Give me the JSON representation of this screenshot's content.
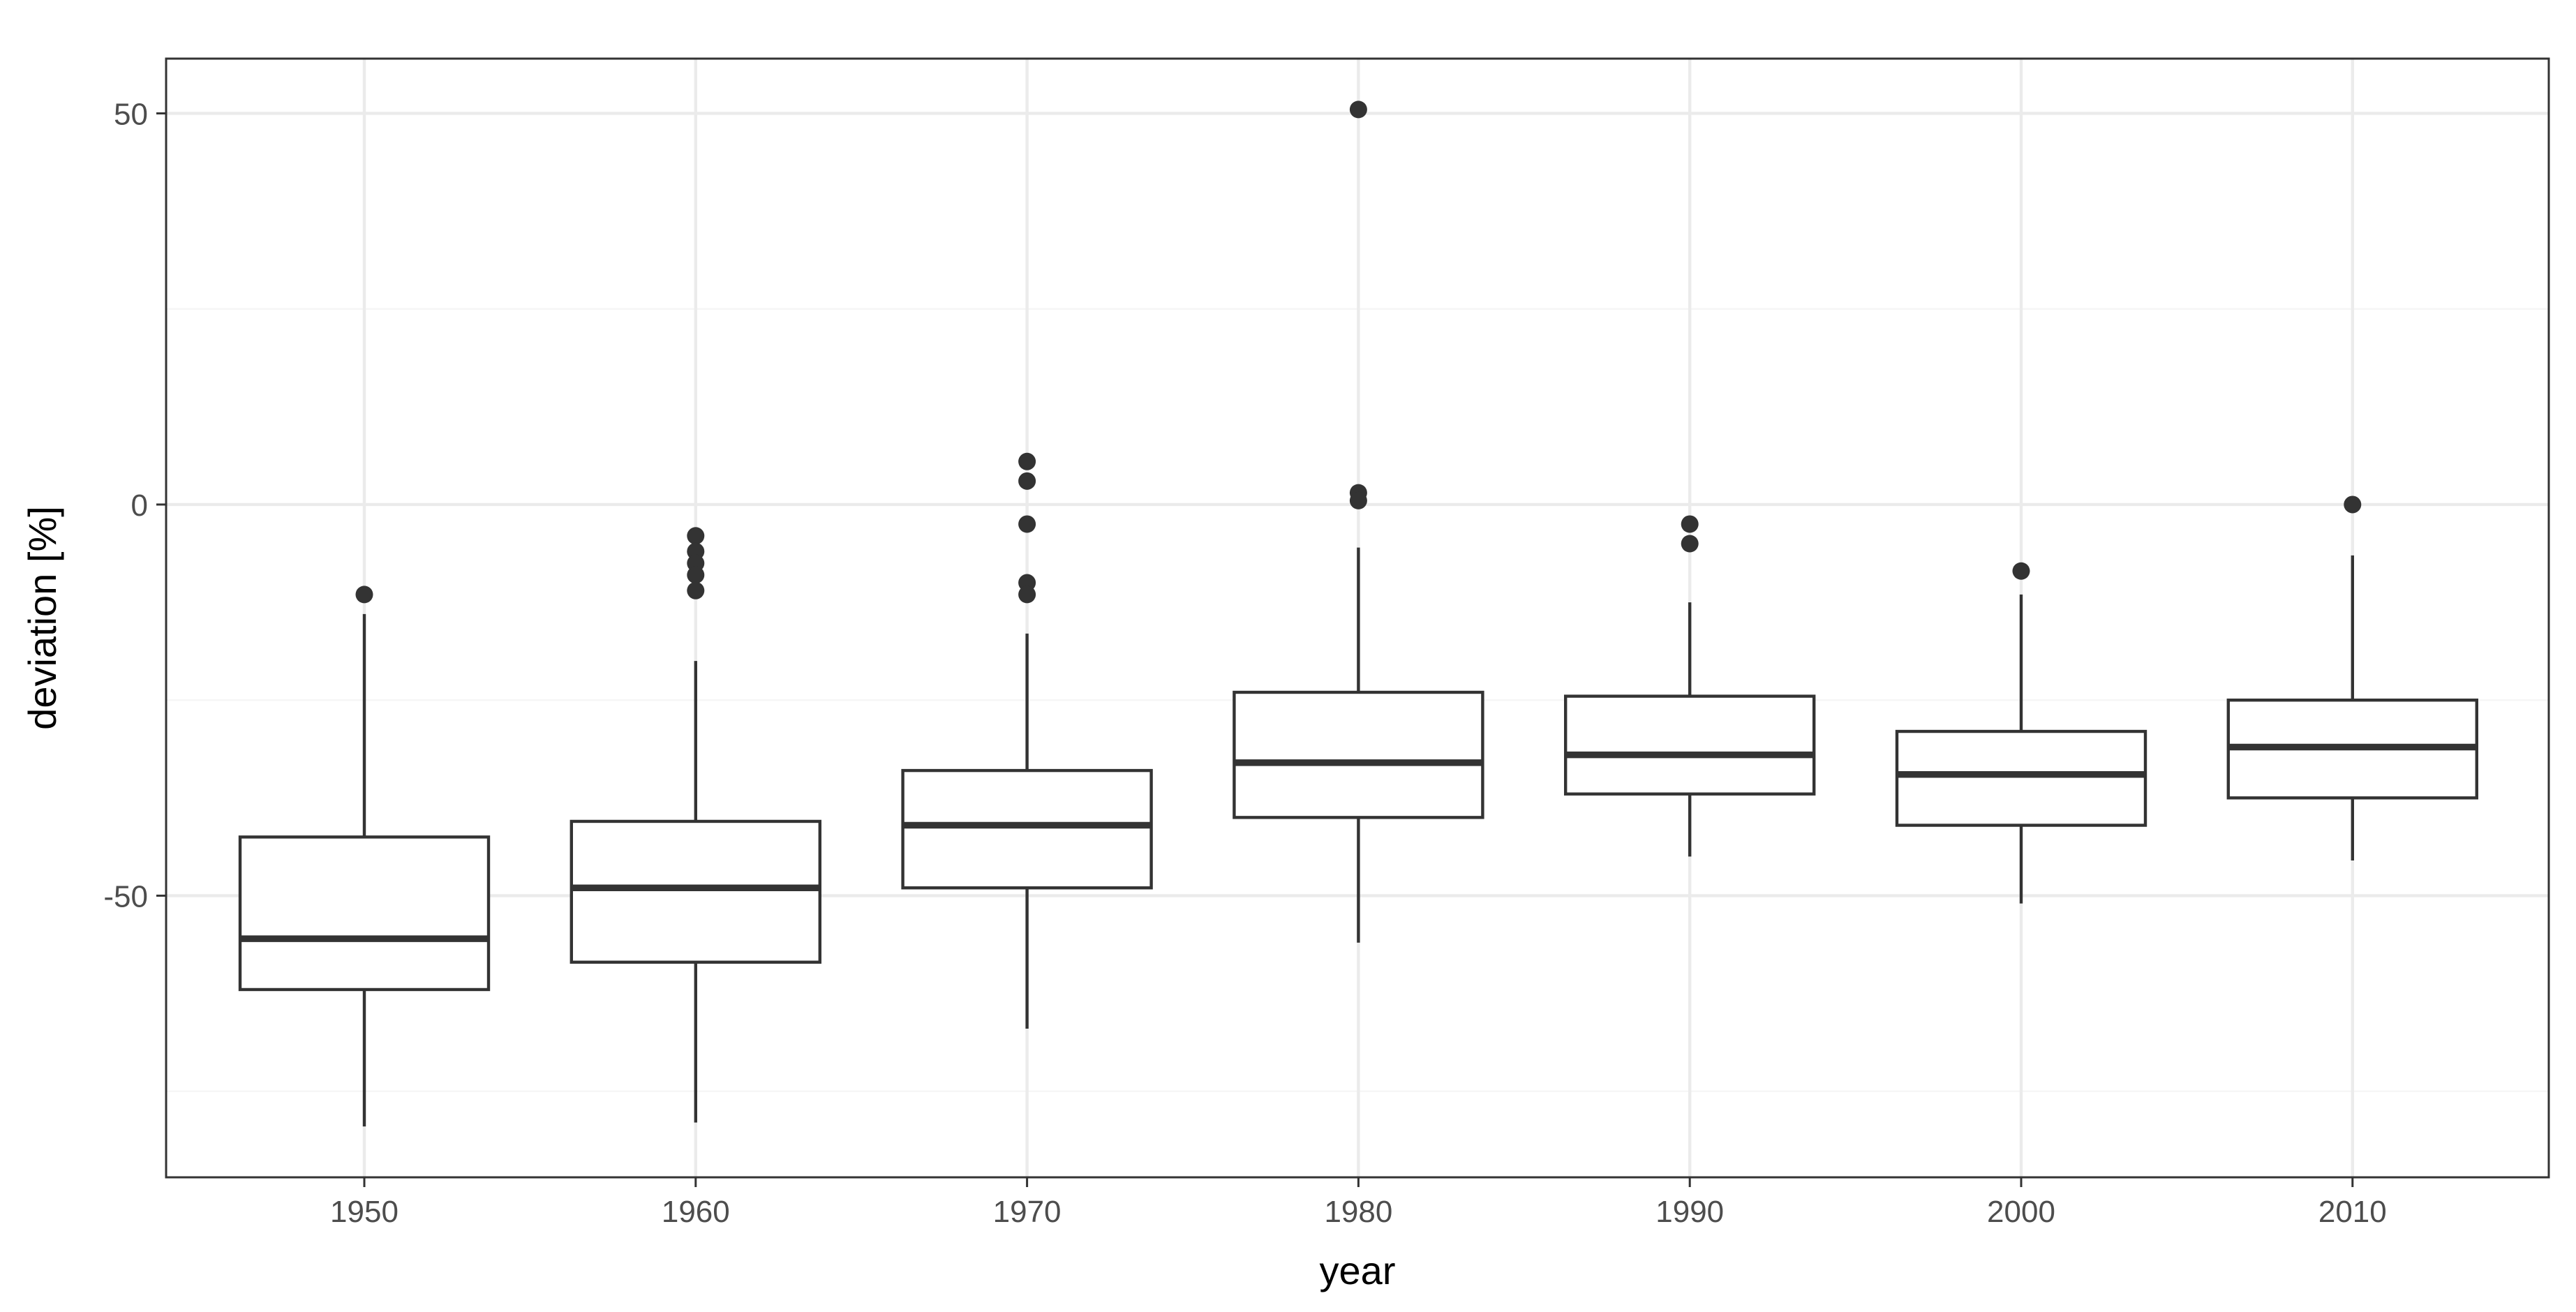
{
  "chart_data": {
    "type": "boxplot",
    "title": "",
    "xlabel": "year",
    "ylabel": "deviation [%]",
    "categories": [
      "1950",
      "1960",
      "1970",
      "1980",
      "1990",
      "2000",
      "2010"
    ],
    "ylim": [
      -86,
      57
    ],
    "yticks": [
      -50,
      0,
      50
    ],
    "ytick_labels": [
      "-50",
      "0",
      "50"
    ],
    "grid": true,
    "colors": {
      "box_stroke": "#333333",
      "outlier": "#333333",
      "grid_major": "#ebebeb",
      "grid_minor": "#f5f5f5",
      "panel_border": "#333333",
      "text": "#4d4d4d"
    },
    "boxes": [
      {
        "category": "1950",
        "whisker_low": -79.5,
        "q1": -62.0,
        "median": -55.5,
        "q3": -42.5,
        "whisker_high": -14.0,
        "outliers": [
          -11.5
        ]
      },
      {
        "category": "1960",
        "whisker_low": -79.0,
        "q1": -58.5,
        "median": -49.0,
        "q3": -40.5,
        "whisker_high": -20.0,
        "outliers": [
          -4.0,
          -6.0,
          -7.5,
          -9.0,
          -11.0
        ]
      },
      {
        "category": "1970",
        "whisker_low": -67.0,
        "q1": -49.0,
        "median": -41.0,
        "q3": -34.0,
        "whisker_high": -16.5,
        "outliers": [
          5.5,
          3.0,
          -2.5,
          -10.0,
          -11.5
        ]
      },
      {
        "category": "1980",
        "whisker_low": -56.0,
        "q1": -40.0,
        "median": -33.0,
        "q3": -24.0,
        "whisker_high": -5.5,
        "outliers": [
          50.5,
          1.5,
          0.5
        ]
      },
      {
        "category": "1990",
        "whisker_low": -45.0,
        "q1": -37.0,
        "median": -32.0,
        "q3": -24.5,
        "whisker_high": -12.5,
        "outliers": [
          -2.5,
          -5.0
        ]
      },
      {
        "category": "2000",
        "whisker_low": -51.0,
        "q1": -41.0,
        "median": -34.5,
        "q3": -29.0,
        "whisker_high": -11.5,
        "outliers": [
          -8.5
        ]
      },
      {
        "category": "2010",
        "whisker_low": -45.5,
        "q1": -37.5,
        "median": -31.0,
        "q3": -25.0,
        "whisker_high": -6.5,
        "outliers": [
          0.0
        ]
      }
    ]
  }
}
